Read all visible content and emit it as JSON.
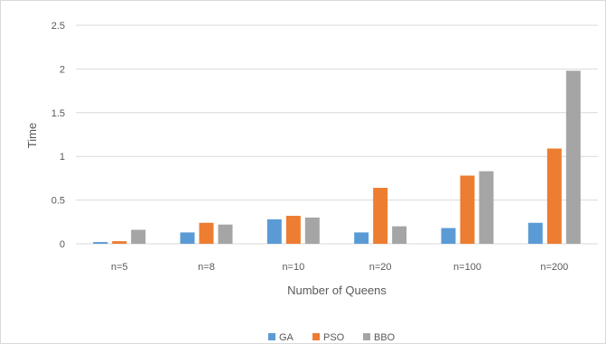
{
  "chart_data": {
    "type": "bar",
    "title": "",
    "xlabel": "Number of Queens",
    "ylabel": "Time",
    "ylim": [
      0,
      2.5
    ],
    "yticks": [
      "0",
      "0.5",
      "1",
      "1.5",
      "2",
      "2.5"
    ],
    "categories": [
      "n=5",
      "n=8",
      "n=10",
      "n=20",
      "n=100",
      "n=200"
    ],
    "series": [
      {
        "name": "GA",
        "color": "#5b9bd5",
        "values": [
          0.02,
          0.13,
          0.28,
          0.13,
          0.18,
          0.24
        ]
      },
      {
        "name": "PSO",
        "color": "#ed7d31",
        "values": [
          0.03,
          0.24,
          0.32,
          0.64,
          0.78,
          1.09
        ]
      },
      {
        "name": "BBO",
        "color": "#a5a5a5",
        "values": [
          0.16,
          0.22,
          0.3,
          0.2,
          0.83,
          1.98
        ]
      }
    ],
    "grid": true,
    "legend_position": "bottom"
  }
}
